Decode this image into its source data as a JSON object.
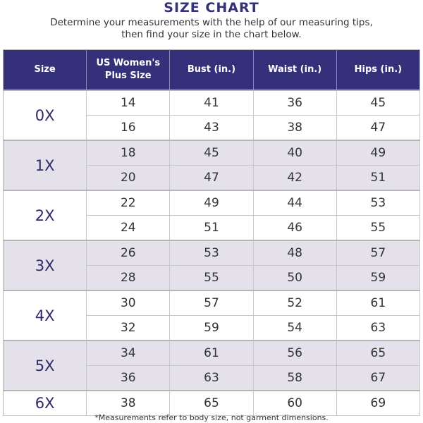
{
  "title": "SIZE CHART",
  "subtitle_line1": "Determine your measurements with the help of our measuring tips,",
  "subtitle_line2": "then find your size in the chart below.",
  "headers": [
    "Size",
    "US Women's Plus Size",
    "Bust (in.)",
    "Waist (in.)",
    "Hips (in.)"
  ],
  "colors": {
    "header": "#35307a",
    "shade": "#e4e1eb",
    "size_text": "#2e2a6b"
  },
  "groups": [
    {
      "size": "0X",
      "rows": [
        [
          "14",
          "41",
          "36",
          "45"
        ],
        [
          "16",
          "43",
          "38",
          "47"
        ]
      ]
    },
    {
      "size": "1X",
      "rows": [
        [
          "18",
          "45",
          "40",
          "49"
        ],
        [
          "20",
          "47",
          "42",
          "51"
        ]
      ]
    },
    {
      "size": "2X",
      "rows": [
        [
          "22",
          "49",
          "44",
          "53"
        ],
        [
          "24",
          "51",
          "46",
          "55"
        ]
      ]
    },
    {
      "size": "3X",
      "rows": [
        [
          "26",
          "53",
          "48",
          "57"
        ],
        [
          "28",
          "55",
          "50",
          "59"
        ]
      ]
    },
    {
      "size": "4X",
      "rows": [
        [
          "30",
          "57",
          "52",
          "61"
        ],
        [
          "32",
          "59",
          "54",
          "63"
        ]
      ]
    },
    {
      "size": "5X",
      "rows": [
        [
          "34",
          "61",
          "56",
          "65"
        ],
        [
          "36",
          "63",
          "58",
          "67"
        ]
      ]
    },
    {
      "size": "6X",
      "rows": [
        [
          "38",
          "65",
          "60",
          "69"
        ]
      ]
    }
  ],
  "footnote": "*Measurements refer to body size, not garment dimensions."
}
